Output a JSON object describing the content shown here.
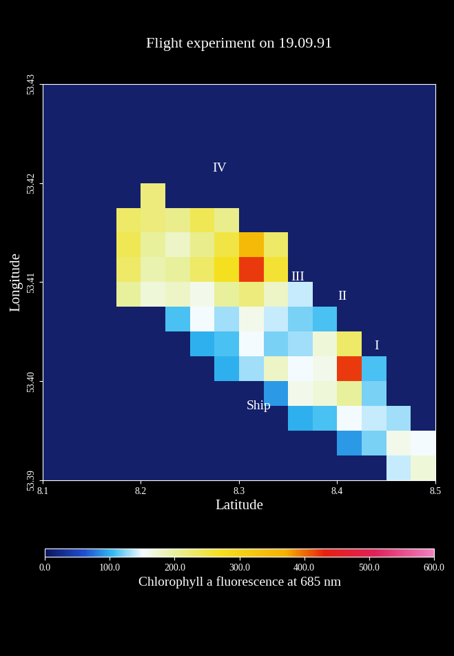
{
  "chart_data": {
    "type": "heatmap",
    "title": "Flight experiment on 19.09.91",
    "x_label": "Latitude",
    "y_label": "Longitude",
    "xlim": [
      8.1,
      8.5
    ],
    "xticks": [
      8.1,
      8.2,
      8.3,
      8.4,
      8.5
    ],
    "ylim": [
      53.39,
      53.43
    ],
    "yticks": [
      53.39,
      {
        "value": 53.4,
        "label": "53.40"
      },
      53.41,
      {
        "value": 53.42,
        "label": "53.42"
      },
      53.43
    ],
    "annotations": [
      "IV",
      "III",
      "II",
      "I",
      "Ship"
    ],
    "colorbar_label": "Chlorophyll a fluorescence at 685 nm",
    "colorbar_range": [
      0,
      600
    ],
    "colorbar_ticks": [
      {
        "value": 0,
        "label": "0.0"
      },
      {
        "value": 100,
        "label": "100.0"
      },
      {
        "value": 200,
        "label": "200.0"
      },
      {
        "value": 300,
        "label": "300.0"
      },
      {
        "value": 400,
        "label": "400.0"
      },
      {
        "value": 500,
        "label": "500.0"
      },
      {
        "value": 600,
        "label": "600.0"
      }
    ],
    "cells": [
      [
        null,
        null,
        null,
        null,
        null,
        null,
        null,
        null,
        null,
        null,
        null,
        null,
        null,
        null,
        140,
        170
      ],
      [
        null,
        null,
        null,
        null,
        null,
        null,
        null,
        null,
        null,
        null,
        null,
        null,
        90,
        120,
        160,
        150
      ],
      [
        null,
        null,
        null,
        null,
        null,
        null,
        null,
        null,
        null,
        null,
        100,
        110,
        150,
        140,
        130,
        null
      ],
      [
        null,
        null,
        null,
        null,
        null,
        null,
        null,
        null,
        null,
        90,
        160,
        170,
        200,
        120,
        null,
        null
      ],
      [
        null,
        null,
        null,
        null,
        null,
        null,
        null,
        100,
        130,
        180,
        150,
        160,
        420,
        110,
        null,
        null
      ],
      [
        null,
        null,
        null,
        null,
        null,
        null,
        100,
        110,
        150,
        120,
        130,
        170,
        230,
        null,
        null,
        null
      ],
      [
        null,
        null,
        null,
        null,
        null,
        110,
        150,
        130,
        160,
        140,
        120,
        110,
        null,
        null,
        null,
        null
      ],
      [
        null,
        null,
        null,
        200,
        170,
        180,
        160,
        200,
        220,
        180,
        140,
        null,
        null,
        null,
        null,
        null
      ],
      [
        null,
        null,
        null,
        230,
        190,
        200,
        230,
        270,
        420,
        260,
        null,
        null,
        null,
        null,
        null,
        null
      ],
      [
        null,
        null,
        null,
        240,
        200,
        180,
        210,
        250,
        350,
        230,
        null,
        null,
        null,
        null,
        null,
        null
      ],
      [
        null,
        null,
        null,
        230,
        220,
        210,
        240,
        210,
        null,
        null,
        null,
        null,
        null,
        null,
        null,
        null
      ],
      [
        null,
        null,
        null,
        null,
        220,
        null,
        null,
        null,
        null,
        null,
        null,
        null,
        null,
        null,
        null,
        null
      ],
      [
        null,
        null,
        null,
        null,
        null,
        null,
        null,
        null,
        null,
        null,
        null,
        null,
        null,
        null,
        null,
        null
      ],
      [
        null,
        null,
        null,
        null,
        null,
        null,
        null,
        null,
        null,
        null,
        null,
        null,
        null,
        null,
        null,
        null
      ],
      [
        null,
        null,
        null,
        null,
        null,
        null,
        null,
        null,
        null,
        null,
        null,
        null,
        null,
        null,
        null,
        null
      ],
      [
        null,
        null,
        null,
        null,
        null,
        null,
        null,
        null,
        null,
        null,
        null,
        null,
        null,
        null,
        null,
        null
      ]
    ]
  }
}
